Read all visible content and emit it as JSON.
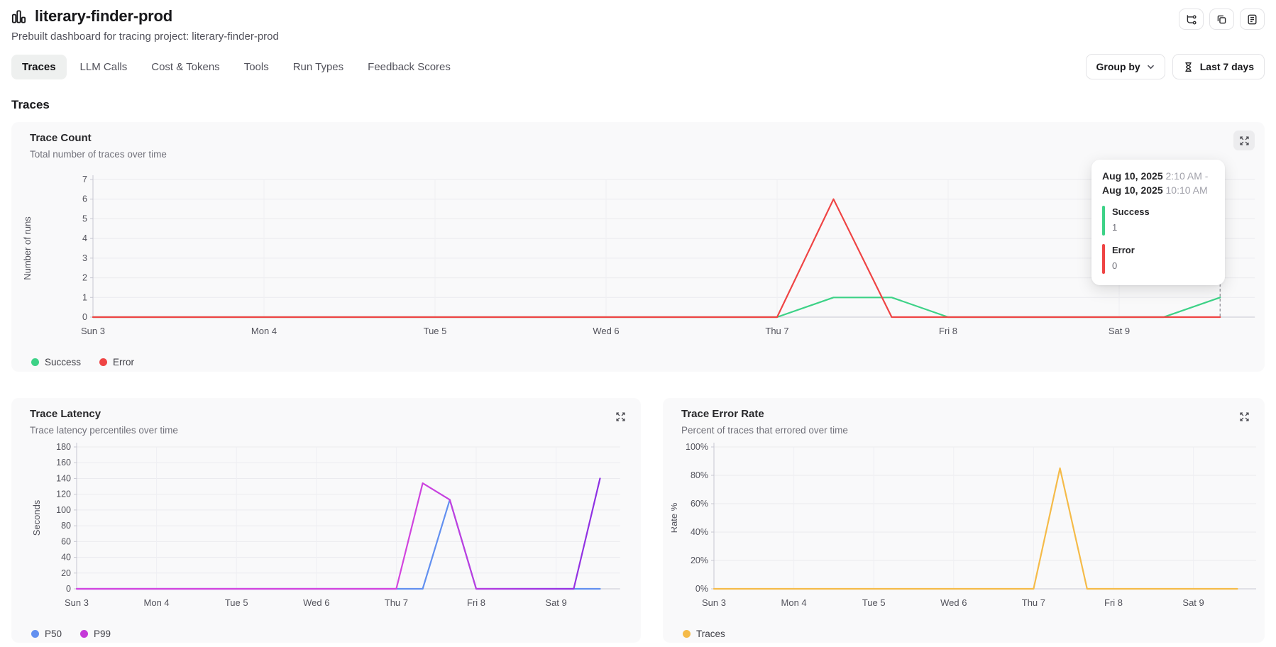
{
  "header": {
    "title": "literary-finder-prod",
    "subtitle": "Prebuilt dashboard for tracing project: literary-finder-prod",
    "action_icons": [
      "branch-icon",
      "copy-icon",
      "notes-icon"
    ]
  },
  "toolbar": {
    "tabs": [
      "Traces",
      "LLM Calls",
      "Cost & Tokens",
      "Tools",
      "Run Types",
      "Feedback Scores"
    ],
    "active_tab": "Traces",
    "group_by_label": "Group by",
    "time_range_label": "Last 7 days"
  },
  "section_title": "Traces",
  "colors": {
    "success": "#3dd287",
    "error": "#ef4444",
    "p50": "#6290f0",
    "p99_start": "#d445de",
    "p99_end": "#8c30e3",
    "traces": "#f5bb49",
    "card_bg": "#f9f9fa",
    "grid": "#ebebef",
    "axis": "#c7c7d1"
  },
  "chart_data": [
    {
      "type": "line",
      "title": "Trace Count",
      "subtitle": "Total number of traces over time",
      "ylabel": "Number of runs",
      "xlabel": "",
      "y_max": 7,
      "y_ticks": [
        "0",
        "1",
        "2",
        "3",
        "4",
        "5",
        "6",
        "7"
      ],
      "x_ticks": [
        "Sun 3",
        "Mon 4",
        "Tue 5",
        "Wed 6",
        "Thu 7",
        "Fri 8",
        "Sat 9"
      ],
      "x_unit": "days from Sun Aug 3",
      "x_max": 6.76,
      "grid": true,
      "legend_position": "bottom-left",
      "hover_line_x": 6.59,
      "series": [
        {
          "name": "Success",
          "color": "#3dd287",
          "points": [
            [
              0,
              0
            ],
            [
              4,
              0
            ],
            [
              4.33,
              1
            ],
            [
              4.67,
              1
            ],
            [
              5,
              0
            ],
            [
              6.26,
              0
            ],
            [
              6.59,
              1
            ]
          ]
        },
        {
          "name": "Error",
          "color": "#ef4444",
          "points": [
            [
              0,
              0
            ],
            [
              4,
              0
            ],
            [
              4.33,
              6
            ],
            [
              4.67,
              0
            ],
            [
              6.59,
              0
            ]
          ]
        }
      ],
      "tooltip": {
        "date_start": "Aug 10, 2025",
        "time_start": "2:10 AM -",
        "date_end": "Aug 10, 2025",
        "time_end": "10:10 AM",
        "items": [
          {
            "label": "Success",
            "value": "1",
            "color": "#3dd287"
          },
          {
            "label": "Error",
            "value": "0",
            "color": "#ef4444"
          }
        ]
      }
    },
    {
      "type": "line",
      "title": "Trace Latency",
      "subtitle": "Trace latency percentiles over time",
      "ylabel": "Seconds",
      "xlabel": "",
      "y_max": 180,
      "y_ticks": [
        "0",
        "20",
        "40",
        "60",
        "80",
        "100",
        "120",
        "140",
        "160",
        "180"
      ],
      "x_ticks": [
        "Sun 3",
        "Mon 4",
        "Tue 5",
        "Wed 6",
        "Thu 7",
        "Fri 8",
        "Sat 9"
      ],
      "x_unit": "days from Sun Aug 3",
      "x_max": 6.73,
      "grid": true,
      "legend_position": "bottom-left",
      "series": [
        {
          "name": "P50",
          "color": "#6290f0",
          "points": [
            [
              0,
              0
            ],
            [
              4.33,
              0
            ],
            [
              4.67,
              113
            ],
            [
              5,
              0
            ],
            [
              6.55,
              0
            ]
          ]
        },
        {
          "name": "P99",
          "color": "#d445de",
          "color_end": "#8c30e3",
          "legend_color": "#c539d8",
          "points": [
            [
              0,
              0
            ],
            [
              4,
              0
            ],
            [
              4.33,
              134
            ],
            [
              4.67,
              113
            ],
            [
              5,
              0
            ],
            [
              6.22,
              0
            ],
            [
              6.55,
              140
            ]
          ]
        }
      ]
    },
    {
      "type": "line",
      "title": "Trace Error Rate",
      "subtitle": "Percent of traces that errored over time",
      "ylabel": "Rate %",
      "xlabel": "",
      "y_max": 100,
      "y_ticks": [
        "0%",
        "20%",
        "40%",
        "60%",
        "80%",
        "100%"
      ],
      "x_ticks": [
        "Sun 3",
        "Mon 4",
        "Tue 5",
        "Wed 6",
        "Thu 7",
        "Fri 8",
        "Sat 9"
      ],
      "x_unit": "days from Sun Aug 3",
      "x_max": 6.73,
      "grid": true,
      "legend_position": "bottom-left",
      "series": [
        {
          "name": "Traces",
          "color": "#f5bb49",
          "points": [
            [
              0,
              0
            ],
            [
              4,
              0
            ],
            [
              4.33,
              85
            ],
            [
              4.67,
              0
            ],
            [
              6.55,
              0
            ]
          ]
        }
      ]
    }
  ]
}
